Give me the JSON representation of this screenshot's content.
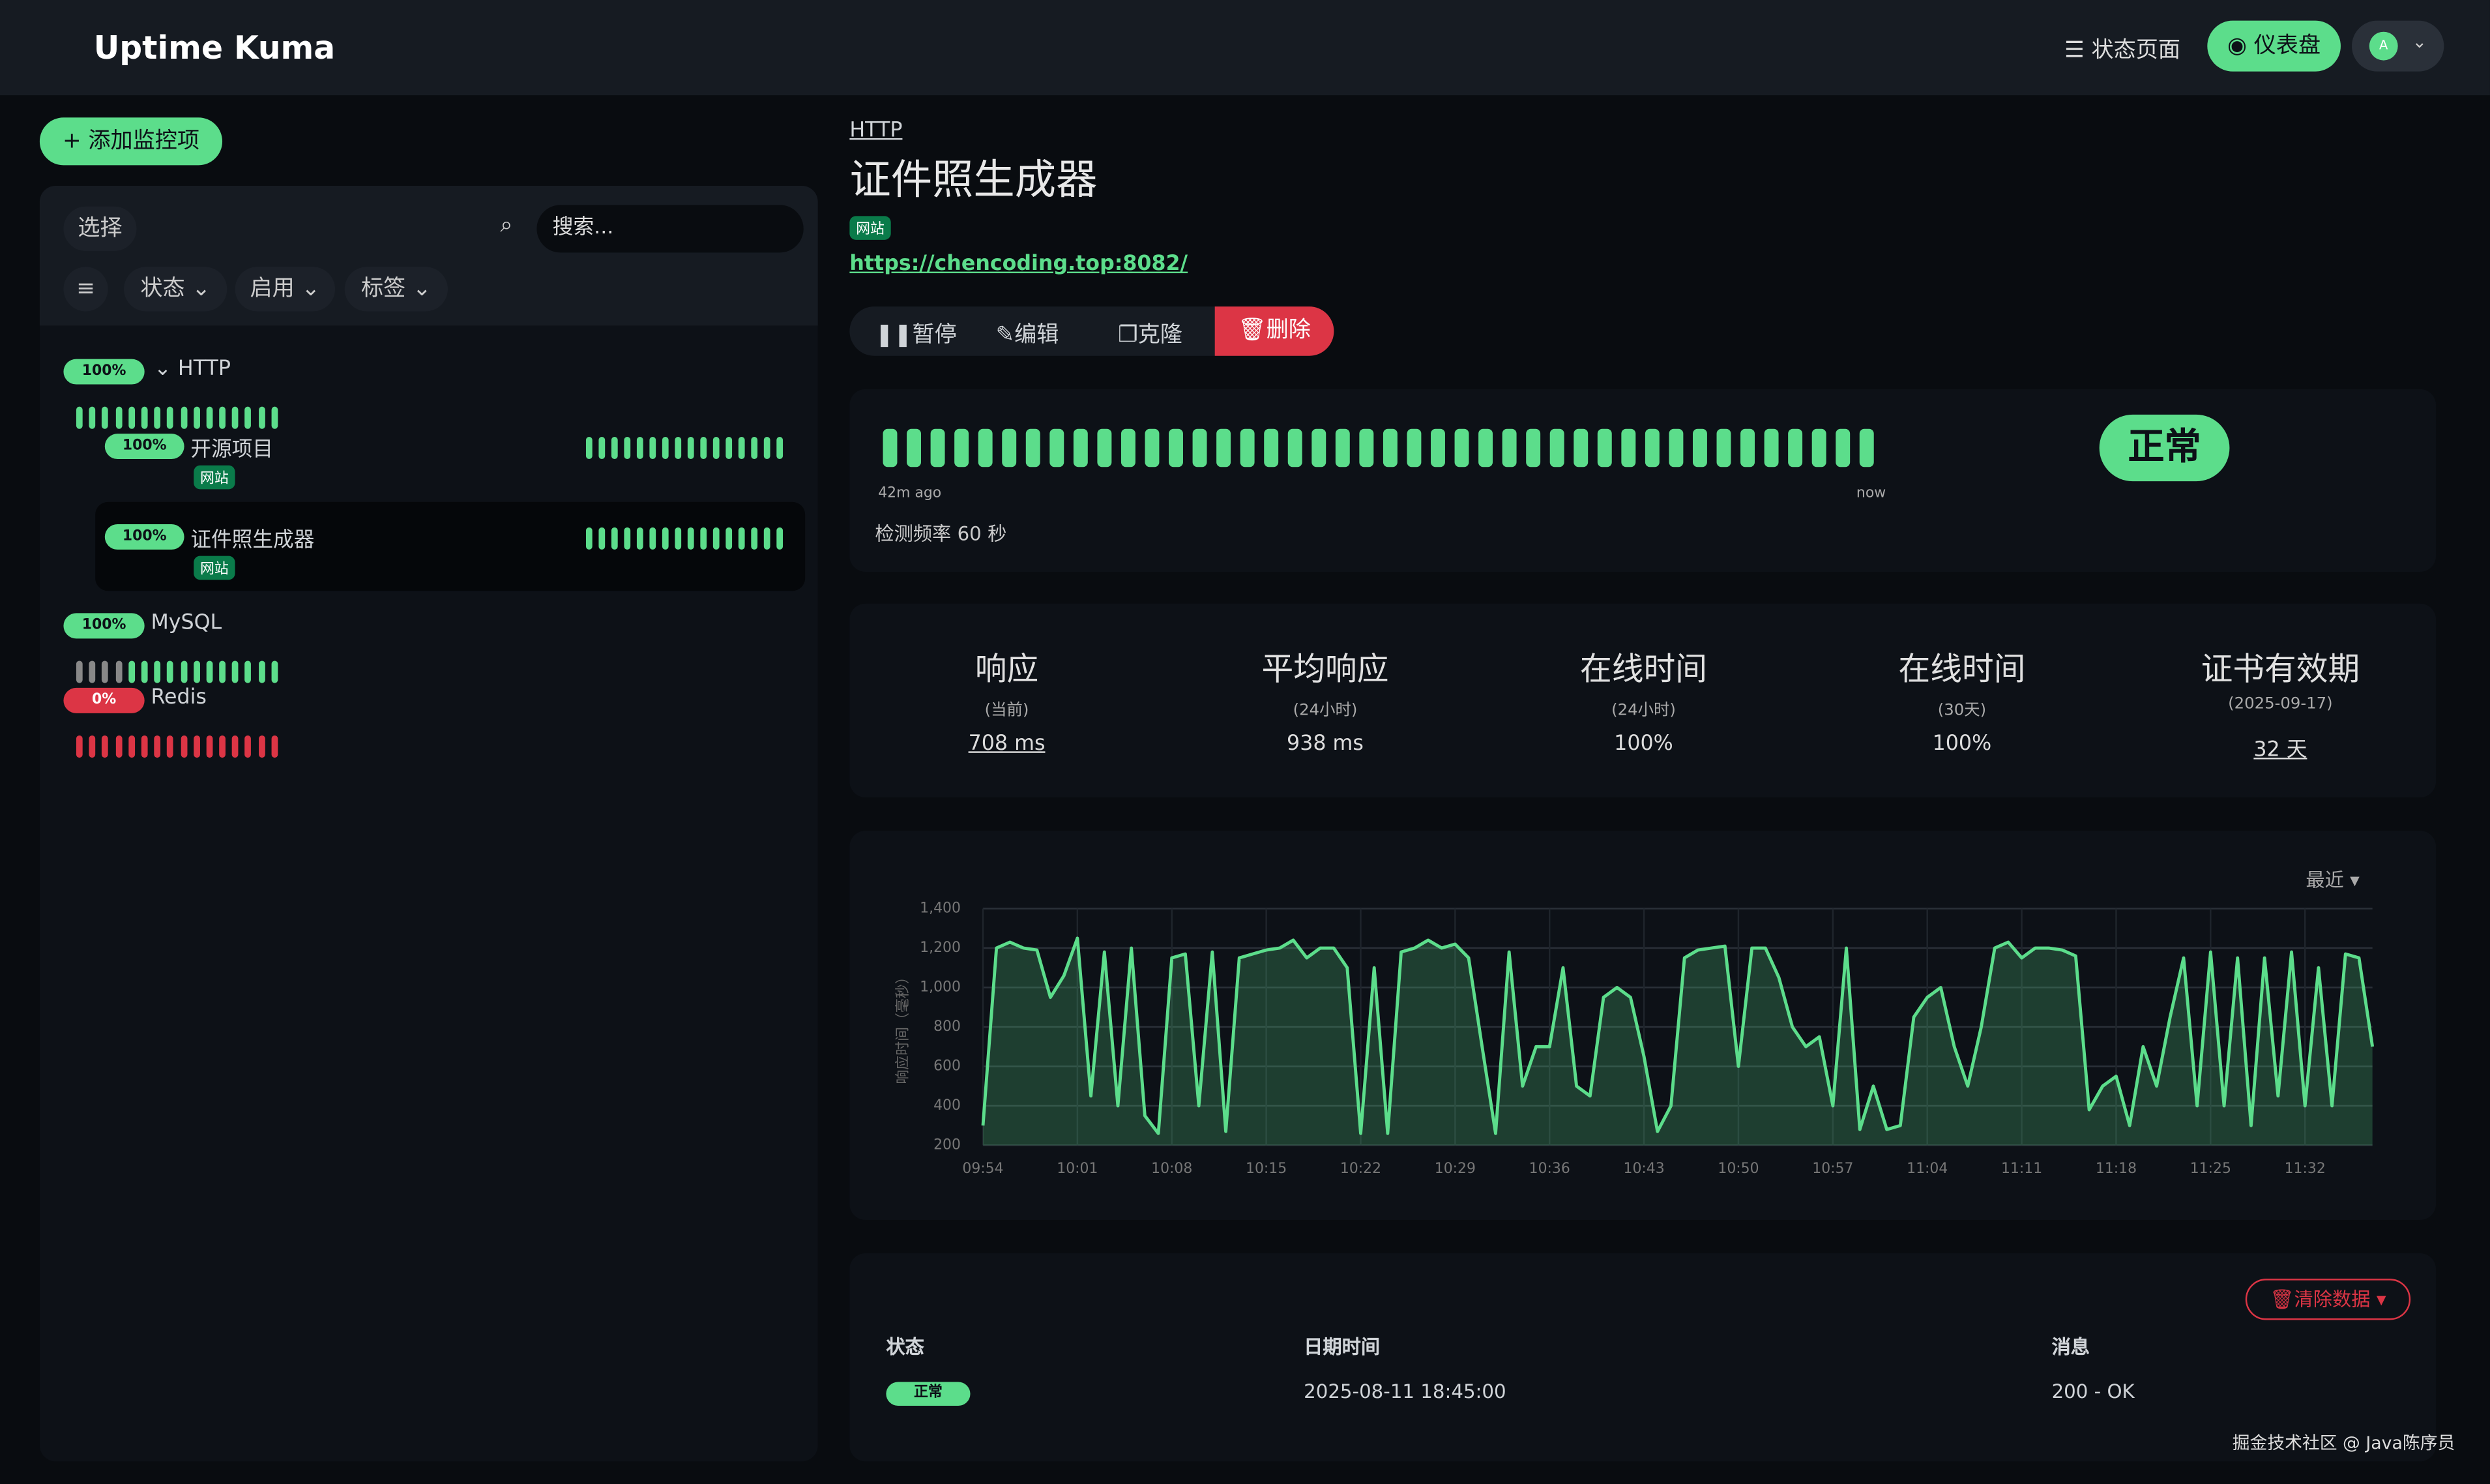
{
  "header": {
    "brand": "Uptime Kuma",
    "status_page": "状态页面",
    "dashboard": "仪表盘",
    "avatar": "A"
  },
  "sidebar": {
    "add_button": "添加监控项",
    "select": "选择",
    "search_placeholder": "搜索...",
    "filters": [
      "状态",
      "启用",
      "标签"
    ],
    "monitors": [
      {
        "uptime": "100%",
        "name": "HTTP"
      },
      {
        "uptime": "100%",
        "name": "开源项目",
        "tag": "网站"
      },
      {
        "uptime": "100%",
        "name": "证件照生成器",
        "tag": "网站"
      },
      {
        "uptime": "100%",
        "name": "MySQL"
      },
      {
        "uptime": "0%",
        "name": "Redis"
      }
    ]
  },
  "detail": {
    "breadcrumb": "HTTP",
    "title": "证件照生成器",
    "tag": "网站",
    "url": "https://chencoding.top:8082/",
    "actions": [
      "暂停",
      "编辑",
      "克隆",
      "删除"
    ],
    "beat_start": "42m ago",
    "beat_end": "now",
    "interval": "检测频率 60 秒",
    "status": "正常",
    "stats": [
      {
        "label": "响应",
        "sub": "(当前)",
        "value": "708 ms"
      },
      {
        "label": "平均响应",
        "sub": "(24小时)",
        "value": "938 ms"
      },
      {
        "label": "在线时间",
        "sub": "(24小时)",
        "value": "100%"
      },
      {
        "label": "在线时间",
        "sub": "(30天)",
        "value": "100%"
      },
      {
        "label": "证书有效期",
        "sub": "(2025-09-17)",
        "value": "32 天"
      }
    ],
    "range": "最近",
    "events": {
      "clear": "清除数据",
      "headers": [
        "状态",
        "日期时间",
        "消息"
      ],
      "rows": [
        [
          "正常",
          "2025-08-11 18:45:00",
          "200 - OK"
        ]
      ]
    }
  },
  "watermark": "掘金技术社区 @ Java陈序员",
  "chart_data": {
    "type": "line",
    "y_label": "响应时间（毫秒）",
    "color": "#5cdd8b",
    "grid": true,
    "categories": [
      "09:54",
      null,
      null,
      null,
      null,
      null,
      null,
      "10:01",
      null,
      null,
      null,
      null,
      null,
      null,
      "10:08",
      null,
      null,
      null,
      null,
      null,
      null,
      "10:15",
      null,
      null,
      null,
      null,
      null,
      null,
      "10:22",
      null,
      null,
      null,
      null,
      null,
      null,
      "10:29",
      null,
      null,
      null,
      null,
      null,
      null,
      "10:36",
      null,
      null,
      null,
      null,
      null,
      null,
      "10:43",
      null,
      null,
      null,
      null,
      null,
      null,
      "10:50",
      null,
      null,
      null,
      null,
      null,
      null,
      "10:57",
      null,
      null,
      null,
      null,
      null,
      null,
      "11:04",
      null,
      null,
      null,
      null,
      null,
      null,
      "11:11",
      null,
      null,
      null,
      null,
      null,
      null,
      "11:18",
      null,
      null,
      null,
      null,
      null,
      null,
      "11:25",
      null,
      null,
      null,
      null,
      null,
      null,
      "11:32",
      null,
      null,
      null,
      null,
      null
    ],
    "values": [
      300,
      1200,
      1230,
      1200,
      1190,
      950,
      1060,
      1250,
      450,
      1180,
      400,
      1200,
      350,
      260,
      1150,
      1170,
      400,
      1180,
      270,
      1150,
      1170,
      1190,
      1200,
      1240,
      1150,
      1200,
      1200,
      1100,
      260,
      1100,
      260,
      1180,
      1200,
      1240,
      1200,
      1220,
      1150,
      700,
      260,
      1180,
      500,
      700,
      700,
      1100,
      500,
      450,
      950,
      1000,
      950,
      650,
      270,
      400,
      1150,
      1190,
      1200,
      1210,
      600,
      1200,
      1200,
      1050,
      800,
      700,
      750,
      400,
      1200,
      280,
      500,
      280,
      300,
      850,
      950,
      1000,
      700,
      500,
      800,
      1200,
      1230,
      1150,
      1200,
      1200,
      1190,
      1160,
      380,
      500,
      550,
      300,
      700,
      500,
      850,
      1150,
      400,
      1180,
      400,
      1150,
      300,
      1150,
      450,
      1180,
      400,
      1100,
      400,
      1170,
      1150,
      700
    ],
    "ylim": [
      200,
      1400
    ],
    "yticks": [
      200,
      400,
      600,
      800,
      {
        "value": 1000,
        "label": "1,000"
      },
      {
        "value": 1200,
        "label": "1,200"
      },
      {
        "value": 1400,
        "label": "1,400"
      }
    ]
  }
}
